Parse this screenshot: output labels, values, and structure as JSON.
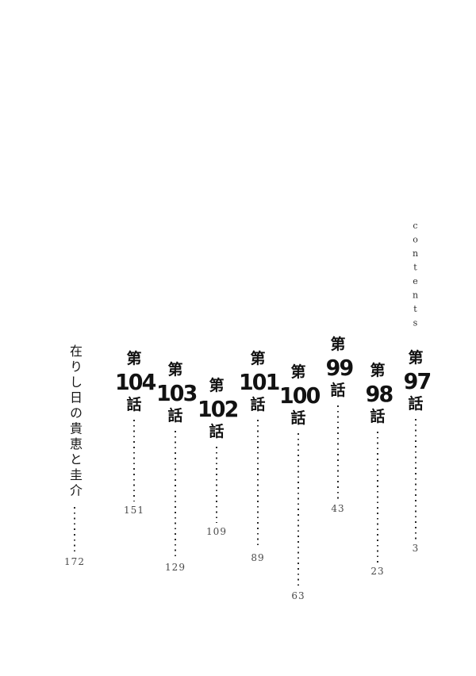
{
  "page": {
    "contents_label": "contents"
  },
  "toc": {
    "chapters": [
      {
        "prefix": "第",
        "number": "97",
        "suffix": "話",
        "page": "3"
      },
      {
        "prefix": "第",
        "number": "98",
        "suffix": "話",
        "page": "23"
      },
      {
        "prefix": "第",
        "number": "99",
        "suffix": "話",
        "page": "43"
      },
      {
        "prefix": "第",
        "number": "100",
        "suffix": "話",
        "page": "63"
      },
      {
        "prefix": "第",
        "number": "101",
        "suffix": "話",
        "page": "89"
      },
      {
        "prefix": "第",
        "number": "102",
        "suffix": "話",
        "page": "109"
      },
      {
        "prefix": "第",
        "number": "103",
        "suffix": "話",
        "page": "129"
      },
      {
        "prefix": "第",
        "number": "104",
        "suffix": "話",
        "page": "151"
      }
    ],
    "special": {
      "title": "在りし日の貴恵と圭介",
      "page": "172"
    }
  }
}
